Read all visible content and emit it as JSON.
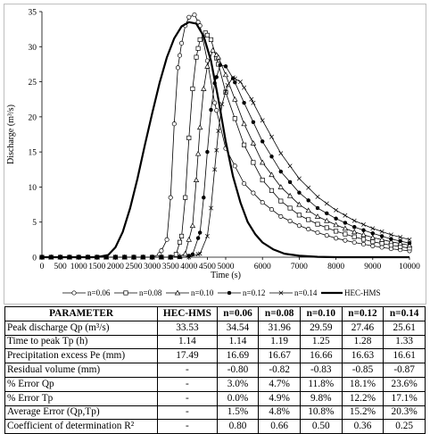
{
  "chart_data": {
    "type": "line",
    "title": "",
    "xlabel": "Time (s)",
    "ylabel": "Discharge (m³/s)",
    "xlim": [
      0,
      10000
    ],
    "ylim": [
      0,
      35
    ],
    "x_ticks": [
      "0",
      "500",
      "1000",
      "1500",
      "2000",
      "2500",
      "3000",
      "3500",
      "4000",
      "4500",
      "5000",
      "6000",
      "7000",
      "8000",
      "9000",
      "10000"
    ],
    "y_ticks": [
      "0",
      "5",
      "10",
      "15",
      "20",
      "25",
      "30",
      "35"
    ],
    "grid": false,
    "legend_position": "bottom",
    "series": [
      {
        "name": "n=0.06",
        "marker": "circle",
        "color": "#000000",
        "points": [
          [
            0,
            0
          ],
          [
            1000,
            0
          ],
          [
            2000,
            0
          ],
          [
            2500,
            0
          ],
          [
            3000,
            0
          ],
          [
            3200,
            0.4
          ],
          [
            3400,
            2.5
          ],
          [
            3500,
            8.5
          ],
          [
            3600,
            19
          ],
          [
            3700,
            27
          ],
          [
            3800,
            30.5
          ],
          [
            3900,
            33
          ],
          [
            4000,
            34.2
          ],
          [
            4150,
            34.54
          ],
          [
            4300,
            33
          ],
          [
            4500,
            28
          ],
          [
            4700,
            22
          ],
          [
            5000,
            15.5
          ],
          [
            5500,
            10.5
          ],
          [
            6000,
            7.8
          ],
          [
            6500,
            5.8
          ],
          [
            7000,
            4.5
          ],
          [
            7500,
            3.5
          ],
          [
            8000,
            2.7
          ],
          [
            8500,
            2.1
          ],
          [
            9000,
            1.6
          ],
          [
            9500,
            1.2
          ],
          [
            10000,
            0.9
          ]
        ]
      },
      {
        "name": "n=0.08",
        "marker": "square",
        "color": "#000000",
        "points": [
          [
            0,
            0
          ],
          [
            2000,
            0
          ],
          [
            3000,
            0
          ],
          [
            3500,
            0
          ],
          [
            3650,
            0.4
          ],
          [
            3800,
            3
          ],
          [
            3900,
            8.5
          ],
          [
            4000,
            17
          ],
          [
            4100,
            24
          ],
          [
            4200,
            28.5
          ],
          [
            4300,
            31
          ],
          [
            4450,
            31.96
          ],
          [
            4600,
            31
          ],
          [
            4800,
            27.5
          ],
          [
            5000,
            23.5
          ],
          [
            5500,
            16
          ],
          [
            6000,
            11
          ],
          [
            6500,
            8
          ],
          [
            7000,
            6
          ],
          [
            7500,
            4.7
          ],
          [
            8000,
            3.7
          ],
          [
            8500,
            2.9
          ],
          [
            9000,
            2.2
          ],
          [
            9500,
            1.7
          ],
          [
            10000,
            1.3
          ]
        ]
      },
      {
        "name": "n=0.10",
        "marker": "triangle",
        "color": "#000000",
        "points": [
          [
            0,
            0
          ],
          [
            2000,
            0
          ],
          [
            3000,
            0
          ],
          [
            3700,
            0
          ],
          [
            3900,
            0.5
          ],
          [
            4100,
            4.5
          ],
          [
            4200,
            11
          ],
          [
            4300,
            18.5
          ],
          [
            4400,
            24
          ],
          [
            4500,
            27.2
          ],
          [
            4650,
            29.5
          ],
          [
            4800,
            28.5
          ],
          [
            5000,
            26
          ],
          [
            5500,
            19
          ],
          [
            6000,
            13.5
          ],
          [
            6500,
            10
          ],
          [
            7000,
            7.5
          ],
          [
            7500,
            5.8
          ],
          [
            8000,
            4.6
          ],
          [
            8500,
            3.6
          ],
          [
            9000,
            2.8
          ],
          [
            9500,
            2.2
          ],
          [
            10000,
            1.7
          ]
        ]
      },
      {
        "name": "n=0.12",
        "marker": "dot",
        "color": "#000000",
        "points": [
          [
            0,
            0
          ],
          [
            2000,
            0
          ],
          [
            3000,
            0
          ],
          [
            3900,
            0
          ],
          [
            4100,
            0.4
          ],
          [
            4300,
            3.5
          ],
          [
            4400,
            8.5
          ],
          [
            4500,
            15
          ],
          [
            4600,
            21
          ],
          [
            4700,
            24.8
          ],
          [
            4850,
            27.4
          ],
          [
            5000,
            27.2
          ],
          [
            5200,
            25.5
          ],
          [
            5500,
            22
          ],
          [
            6000,
            16.5
          ],
          [
            6500,
            12.2
          ],
          [
            7000,
            9.2
          ],
          [
            7500,
            7
          ],
          [
            8000,
            5.5
          ],
          [
            8500,
            4.3
          ],
          [
            9000,
            3.4
          ],
          [
            9500,
            2.6
          ],
          [
            10000,
            2
          ]
        ]
      },
      {
        "name": "n=0.14",
        "marker": "x",
        "color": "#000000",
        "points": [
          [
            0,
            0
          ],
          [
            2000,
            0
          ],
          [
            3000,
            0
          ],
          [
            4000,
            0
          ],
          [
            4300,
            0.5
          ],
          [
            4500,
            3
          ],
          [
            4600,
            7
          ],
          [
            4700,
            12.5
          ],
          [
            4800,
            18
          ],
          [
            4900,
            21.8
          ],
          [
            5050,
            24.5
          ],
          [
            5200,
            25.6
          ],
          [
            5400,
            25
          ],
          [
            5700,
            22.5
          ],
          [
            6000,
            19.5
          ],
          [
            6500,
            14.8
          ],
          [
            7000,
            11.2
          ],
          [
            7500,
            8.6
          ],
          [
            8000,
            6.7
          ],
          [
            8500,
            5.2
          ],
          [
            9000,
            4.1
          ],
          [
            9500,
            3.2
          ],
          [
            10000,
            2.5
          ]
        ]
      },
      {
        "name": "HEC-HMS",
        "marker": "none",
        "color": "#000000",
        "points": [
          [
            0,
            0
          ],
          [
            1500,
            0
          ],
          [
            1800,
            0.3
          ],
          [
            2000,
            1.4
          ],
          [
            2200,
            3.6
          ],
          [
            2400,
            7
          ],
          [
            2600,
            11.2
          ],
          [
            2800,
            16
          ],
          [
            3000,
            20.5
          ],
          [
            3200,
            24.8
          ],
          [
            3400,
            28.5
          ],
          [
            3600,
            31.2
          ],
          [
            3800,
            32.9
          ],
          [
            4000,
            33.5
          ],
          [
            4200,
            33.3
          ],
          [
            4400,
            31.5
          ],
          [
            4600,
            28
          ],
          [
            4800,
            22.5
          ],
          [
            5000,
            16.5
          ],
          [
            5200,
            11.5
          ],
          [
            5400,
            7.8
          ],
          [
            5600,
            5
          ],
          [
            5800,
            3.3
          ],
          [
            6000,
            2.1
          ],
          [
            6300,
            1.1
          ],
          [
            6600,
            0.5
          ],
          [
            7000,
            0.2
          ],
          [
            7500,
            0.05
          ],
          [
            8000,
            0
          ],
          [
            10000,
            0
          ]
        ]
      }
    ]
  },
  "table": {
    "headers": [
      "PARAMETER",
      "HEC-HMS",
      "n=0.06",
      "n=0.08",
      "n=0.10",
      "n=0.12",
      "n=0.14"
    ],
    "rows": [
      [
        "Peak discharge Qp (m³/s)",
        "33.53",
        "34.54",
        "31.96",
        "29.59",
        "27.46",
        "25.61"
      ],
      [
        "Time to peak Tp (h)",
        "1.14",
        "1.14",
        "1.19",
        "1.25",
        "1.28",
        "1.33"
      ],
      [
        "Precipitation excess Pe (mm)",
        "17.49",
        "16.69",
        "16.67",
        "16.66",
        "16.63",
        "16.61"
      ],
      [
        "Residual volume (mm)",
        "-",
        "-0.80",
        "-0.82",
        "-0.83",
        "-0.85",
        "-0.87"
      ],
      [
        "% Error Qp",
        "-",
        "3.0%",
        "4.7%",
        "11.8%",
        "18.1%",
        "23.6%"
      ],
      [
        "% Error Tp",
        "-",
        "0.0%",
        "4.9%",
        "9.8%",
        "12.2%",
        "17.1%"
      ],
      [
        "Average Error (Qp,Tp)",
        "-",
        "1.5%",
        "4.8%",
        "10.8%",
        "15.2%",
        "20.3%"
      ],
      [
        "Coefficient of determination R²",
        "-",
        "0.80",
        "0.66",
        "0.50",
        "0.36",
        "0.25"
      ]
    ]
  }
}
